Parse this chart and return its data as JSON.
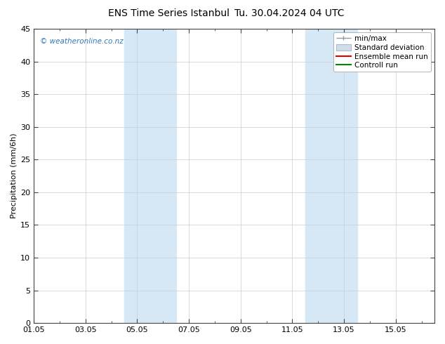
{
  "title": "ENS Time Series Istanbul",
  "title2": "Tu. 30.04.2024 04 UTC",
  "ylabel": "Precipitation (mm/6h)",
  "background_color": "#ffffff",
  "plot_bg_color": "#ffffff",
  "xticklabels": [
    "01.05",
    "03.05",
    "05.05",
    "07.05",
    "09.05",
    "11.05",
    "13.05",
    "15.05"
  ],
  "xtick_positions": [
    0,
    2,
    4,
    6,
    8,
    10,
    12,
    14
  ],
  "xlim": [
    0,
    15.5
  ],
  "ylim": [
    0,
    45
  ],
  "yticks": [
    0,
    5,
    10,
    15,
    20,
    25,
    30,
    35,
    40,
    45
  ],
  "watermark": "© weatheronline.co.nz",
  "watermark_color": "#3377bb",
  "legend_items": [
    {
      "label": "min/max"
    },
    {
      "label": "Standard deviation"
    },
    {
      "label": "Ensemble mean run"
    },
    {
      "label": "Controll run"
    }
  ],
  "shaded_color": "#d6e8f5",
  "shaded_regions": [
    {
      "xstart": 3.5,
      "xend": 4.5
    },
    {
      "xstart": 4.5,
      "xend": 5.5
    },
    {
      "xstart": 10.5,
      "xend": 11.5
    },
    {
      "xstart": 11.5,
      "xend": 12.5
    }
  ],
  "minmax_color": "#999999",
  "std_facecolor": "#d0dde8",
  "std_edgecolor": "#aabbcc",
  "ens_color": "#dd0000",
  "ctrl_color": "#008800"
}
